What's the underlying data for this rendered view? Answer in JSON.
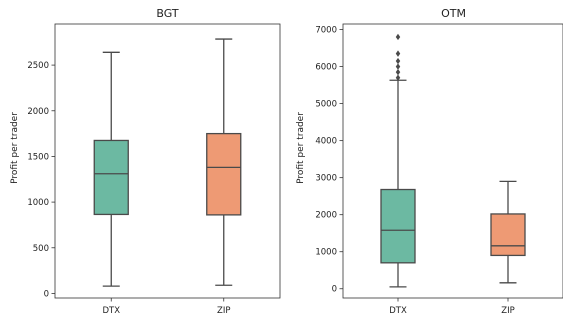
{
  "colors": {
    "dtx": "#6cb9a2",
    "zip": "#ee9a74",
    "line": "#4a4a4a"
  },
  "chart_data": [
    {
      "type": "box",
      "title": "BGT",
      "ylabel": "Profit per trader",
      "categories": [
        "DTX",
        "ZIP"
      ],
      "ylim": [
        -50,
        2950
      ],
      "yticks": [
        0,
        500,
        1000,
        1500,
        2000,
        2500
      ],
      "ytick_labels": [
        "0",
        "500",
        "1000",
        "1500",
        "2000",
        "2500"
      ],
      "boxes": [
        {
          "name": "DTX",
          "whislo": 80,
          "q1": 865,
          "med": 1310,
          "q3": 1675,
          "whishi": 2640,
          "fliers": []
        },
        {
          "name": "ZIP",
          "whislo": 90,
          "q1": 860,
          "med": 1380,
          "q3": 1750,
          "whishi": 2785,
          "fliers": []
        }
      ]
    },
    {
      "type": "box",
      "title": "OTM",
      "ylabel": "Profit per trader",
      "categories": [
        "DTX",
        "ZIP"
      ],
      "ylim": [
        -250,
        7150
      ],
      "yticks": [
        0,
        1000,
        2000,
        3000,
        4000,
        5000,
        6000,
        7000
      ],
      "ytick_labels": [
        "0",
        "1000",
        "2000",
        "3000",
        "4000",
        "5000",
        "6000",
        "7000"
      ],
      "boxes": [
        {
          "name": "DTX",
          "whislo": 50,
          "q1": 700,
          "med": 1580,
          "q3": 2680,
          "whishi": 5630,
          "fliers": [
            5700,
            5850,
            6000,
            6150,
            6350,
            6800
          ]
        },
        {
          "name": "ZIP",
          "whislo": 160,
          "q1": 900,
          "med": 1160,
          "q3": 2020,
          "whishi": 2900,
          "fliers": []
        }
      ]
    }
  ]
}
